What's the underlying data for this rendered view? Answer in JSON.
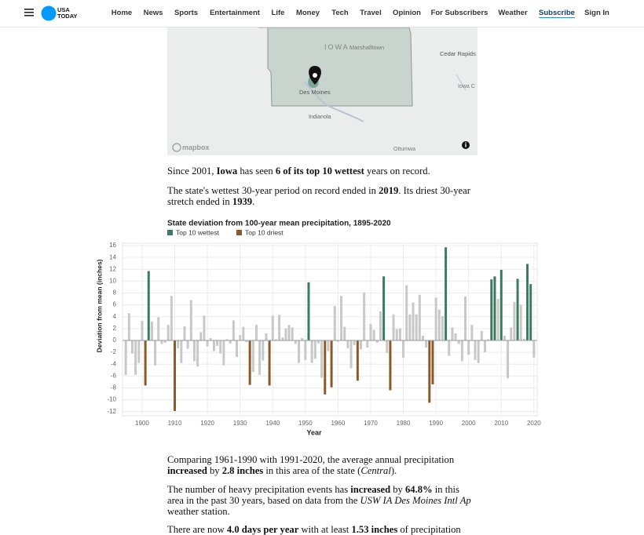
{
  "header": {
    "logo": [
      "USA",
      "TODAY"
    ],
    "nav": [
      "Home",
      "News",
      "Sports",
      "Entertainment",
      "Life",
      "Money",
      "Tech",
      "Travel",
      "Opinion",
      "For Subscribers",
      "Weather",
      "Subscribe",
      "Sign In"
    ]
  },
  "map": {
    "labels": [
      "IOWA",
      "Marshalltown",
      "Cedar Rapids",
      "Iowa C",
      "Des Moines",
      "Indianola",
      "Ottumwa"
    ],
    "attribution": "mapbox"
  },
  "intro": [
    [
      {
        "text": "Since 2001, "
      },
      {
        "text": "Iowa",
        "bold": true
      },
      {
        "text": " has seen "
      },
      {
        "text": "6 of its top 10 wettest",
        "bold": true
      },
      {
        "text": " years on record."
      }
    ],
    [
      {
        "text": "The state's wettest 30-year period on record ended in "
      },
      {
        "text": "2019",
        "bold": true
      },
      {
        "text": ". Its driest 30-year stretch ended in "
      },
      {
        "text": "1939",
        "bold": true
      },
      {
        "text": "."
      }
    ]
  ],
  "chart_data": {
    "type": "bar",
    "title": "State deviation from 100-year mean precipitation, 1895-2020",
    "x_label": "Year",
    "y_label": "Deviation from mean (inches)",
    "x": [
      1895,
      1896,
      1897,
      1898,
      1899,
      1900,
      1901,
      1902,
      1903,
      1904,
      1905,
      1906,
      1907,
      1908,
      1909,
      1910,
      1911,
      1912,
      1913,
      1914,
      1915,
      1916,
      1917,
      1918,
      1919,
      1920,
      1921,
      1922,
      1923,
      1924,
      1925,
      1926,
      1927,
      1928,
      1929,
      1930,
      1931,
      1932,
      1933,
      1934,
      1935,
      1936,
      1937,
      1938,
      1939,
      1940,
      1941,
      1942,
      1943,
      1944,
      1945,
      1946,
      1947,
      1948,
      1949,
      1950,
      1951,
      1952,
      1953,
      1954,
      1955,
      1956,
      1957,
      1958,
      1959,
      1960,
      1961,
      1962,
      1963,
      1964,
      1965,
      1966,
      1967,
      1968,
      1969,
      1970,
      1971,
      1972,
      1973,
      1974,
      1975,
      1976,
      1977,
      1978,
      1979,
      1980,
      1981,
      1982,
      1983,
      1984,
      1985,
      1986,
      1987,
      1988,
      1989,
      1990,
      1991,
      1992,
      1993,
      1994,
      1995,
      1996,
      1997,
      1998,
      1999,
      2000,
      2001,
      2002,
      2003,
      2004,
      2005,
      2006,
      2007,
      2008,
      2009,
      2010,
      2011,
      2012,
      2013,
      2014,
      2015,
      2016,
      2017,
      2018,
      2019,
      2020
    ],
    "series": [
      {
        "name": "Top 10 wettest",
        "color": "#3d7a63",
        "values": [
          null,
          null,
          null,
          null,
          null,
          null,
          null,
          11.7,
          null,
          null,
          null,
          null,
          null,
          null,
          null,
          null,
          null,
          null,
          null,
          null,
          null,
          null,
          null,
          null,
          null,
          null,
          null,
          null,
          null,
          null,
          null,
          null,
          null,
          null,
          null,
          null,
          null,
          null,
          null,
          null,
          null,
          null,
          null,
          null,
          null,
          null,
          null,
          null,
          null,
          null,
          null,
          null,
          null,
          null,
          null,
          null,
          9.8,
          null,
          null,
          null,
          null,
          null,
          null,
          null,
          null,
          null,
          null,
          null,
          null,
          null,
          null,
          null,
          null,
          null,
          null,
          null,
          null,
          null,
          null,
          10.8,
          null,
          null,
          null,
          null,
          null,
          null,
          null,
          null,
          null,
          null,
          null,
          null,
          null,
          null,
          null,
          null,
          null,
          null,
          15.7,
          null,
          null,
          null,
          null,
          null,
          null,
          null,
          null,
          null,
          null,
          null,
          null,
          null,
          10.3,
          10.8,
          null,
          11.9,
          null,
          null,
          null,
          null,
          10.4,
          null,
          null,
          12.9,
          9.5,
          null
        ]
      },
      {
        "name": "Top 10 driest",
        "color": "#8a5a2b",
        "values": [
          null,
          null,
          null,
          null,
          null,
          null,
          -7.6,
          null,
          null,
          null,
          null,
          null,
          null,
          null,
          null,
          -11.9,
          null,
          null,
          null,
          null,
          null,
          null,
          null,
          null,
          null,
          null,
          null,
          null,
          null,
          null,
          null,
          null,
          null,
          null,
          null,
          null,
          null,
          null,
          -7.5,
          null,
          null,
          null,
          null,
          null,
          -7.6,
          null,
          null,
          null,
          null,
          null,
          null,
          null,
          null,
          null,
          null,
          null,
          null,
          null,
          null,
          null,
          null,
          -9.1,
          null,
          -7.9,
          null,
          null,
          null,
          null,
          null,
          null,
          null,
          -6.8,
          null,
          null,
          null,
          null,
          null,
          null,
          null,
          null,
          null,
          -8.4,
          null,
          null,
          null,
          null,
          null,
          null,
          null,
          null,
          null,
          null,
          null,
          -10.5,
          -7.4,
          null,
          null,
          null,
          null,
          null,
          null,
          null,
          null,
          null,
          null,
          null,
          null,
          null,
          null,
          null,
          null,
          null,
          null,
          null,
          null,
          null,
          null,
          null,
          null,
          null,
          null,
          null,
          null,
          null,
          null,
          null
        ]
      },
      {
        "color": "#c8c8c8",
        "values": [
          -5.8,
          4.6,
          -2.2,
          -5.8,
          -3.8,
          3.3,
          null,
          null,
          3.2,
          -4.2,
          3.9,
          -0.6,
          -0.4,
          2.6,
          7.5,
          null,
          -1.3,
          -3.8,
          2.4,
          -1.4,
          6.8,
          -3.5,
          -4.4,
          1.4,
          4.2,
          -1.0,
          0.4,
          -1.8,
          -0.9,
          -2.2,
          -4.2,
          0.2,
          -0.5,
          3.4,
          -2.8,
          0.9,
          2.3,
          -0.3,
          null,
          -5.3,
          2.6,
          -5.8,
          -3.4,
          1.2,
          null,
          4.2,
          0.2,
          4.3,
          0.5,
          2.0,
          2.6,
          2.2,
          -0.6,
          -3.8,
          0.4,
          -3.3,
          null,
          -3.8,
          -3.1,
          -0.5,
          -6.3,
          null,
          -1.8,
          null,
          5.8,
          -0.2,
          7.5,
          2.3,
          -1.3,
          -4.7,
          -0.8,
          null,
          -1.5,
          8.1,
          -1.2,
          2.8,
          1.8,
          -0.4,
          4.9,
          null,
          -2.1,
          null,
          4.4,
          1.9,
          2.0,
          -2.9,
          9.3,
          4.4,
          6.4,
          4.4,
          7.7,
          0.8,
          -1.2,
          null,
          null,
          7.2,
          5.2,
          4.1,
          null,
          -2.6,
          2.2,
          1.2,
          -0.6,
          -3.5,
          7.4,
          -2.4,
          2.6,
          -3.3,
          -3.8,
          1.6,
          -2.0,
          0.2,
          null,
          null,
          7.0,
          null,
          0.8,
          -6.4,
          2.2,
          6.5,
          null,
          6.0,
          0.3,
          null,
          null,
          -2.9
        ]
      }
    ],
    "xlim": [
      1894,
      2021
    ],
    "xticks": [
      1900,
      1910,
      1920,
      1930,
      1940,
      1950,
      1960,
      1970,
      1980,
      1990,
      2000,
      2010,
      2020
    ],
    "ylim": [
      -12.7,
      16.4
    ],
    "yticks": [
      -12,
      -10,
      -8,
      -6,
      -4,
      -2,
      0,
      2,
      4,
      6,
      8,
      10,
      12,
      14,
      16
    ],
    "grid": true
  },
  "outro": [
    [
      {
        "text": "Comparing 1961-1990 with 1991-2020, the average annual precipitation "
      },
      {
        "text": "increased",
        "bold": true
      },
      {
        "text": " by "
      },
      {
        "text": "2.8 inches",
        "bold": true
      },
      {
        "text": " in this area of the state ("
      },
      {
        "text": "Central",
        "italic": true
      },
      {
        "text": ")."
      }
    ],
    [
      {
        "text": "The number of heavy precipitation events has "
      },
      {
        "text": "increased",
        "bold": true
      },
      {
        "text": " by "
      },
      {
        "text": "64.8%",
        "bold": true
      },
      {
        "text": " in this area in the past 30 years, based on data from the "
      },
      {
        "text": "USW IA Des Moines Intl Ap",
        "italic": true
      },
      {
        "text": " weather station."
      }
    ],
    [
      {
        "text": "There are now "
      },
      {
        "text": "4.0 days per year",
        "bold": true
      },
      {
        "text": " with at least "
      },
      {
        "text": "1.53 inches",
        "bold": true
      },
      {
        "text": " of precipitation"
      }
    ]
  ]
}
